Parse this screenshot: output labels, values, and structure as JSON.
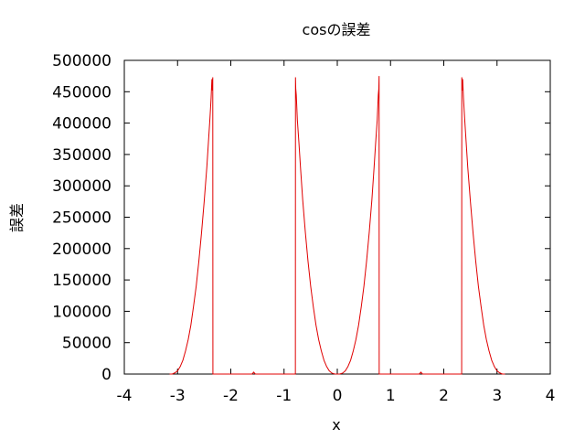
{
  "chart_data": {
    "type": "line",
    "title": "cosの誤差",
    "xlabel": "x",
    "ylabel": "誤差",
    "xlim": [
      -4,
      4
    ],
    "ylim": [
      0,
      500000
    ],
    "xticks": [
      "-4",
      "-3",
      "-2",
      "-1",
      "0",
      "1",
      "2",
      "3",
      "4"
    ],
    "yticks": [
      "0",
      "50000",
      "100000",
      "150000",
      "200000",
      "250000",
      "300000",
      "350000",
      "400000",
      "450000",
      "500000"
    ],
    "grid": false,
    "legend": "none",
    "series": [
      {
        "color": "#e00000",
        "points": [
          [
            -3.15,
            0
          ],
          [
            -3.1,
            0
          ],
          [
            -3.05,
            2000
          ],
          [
            -3.0,
            5000
          ],
          [
            -2.95,
            12000
          ],
          [
            -2.9,
            22000
          ],
          [
            -2.85,
            37000
          ],
          [
            -2.8,
            55000
          ],
          [
            -2.75,
            78000
          ],
          [
            -2.7,
            108000
          ],
          [
            -2.65,
            140000
          ],
          [
            -2.6,
            180000
          ],
          [
            -2.55,
            225000
          ],
          [
            -2.5,
            275000
          ],
          [
            -2.45,
            330000
          ],
          [
            -2.42,
            370000
          ],
          [
            -2.39,
            410000
          ],
          [
            -2.37,
            440000
          ],
          [
            -2.355,
            470000
          ],
          [
            -2.345,
            452000
          ],
          [
            -2.3385,
            473000
          ],
          [
            -2.336,
            0
          ],
          [
            -2.33,
            0
          ],
          [
            -1.6,
            0
          ],
          [
            -1.57,
            3000
          ],
          [
            -1.54,
            0
          ],
          [
            -0.787,
            0
          ],
          [
            -0.785,
            473000
          ],
          [
            -0.78,
            455000
          ],
          [
            -0.77,
            445000
          ],
          [
            -0.75,
            405000
          ],
          [
            -0.72,
            368000
          ],
          [
            -0.69,
            328000
          ],
          [
            -0.65,
            278000
          ],
          [
            -0.6,
            226000
          ],
          [
            -0.55,
            180000
          ],
          [
            -0.5,
            140000
          ],
          [
            -0.45,
            107000
          ],
          [
            -0.4,
            78000
          ],
          [
            -0.35,
            55000
          ],
          [
            -0.3,
            37000
          ],
          [
            -0.25,
            22000
          ],
          [
            -0.2,
            12000
          ],
          [
            -0.15,
            5000
          ],
          [
            -0.1,
            1500
          ],
          [
            -0.05,
            200
          ],
          [
            0.0,
            0
          ],
          [
            0.05,
            200
          ],
          [
            0.1,
            1500
          ],
          [
            0.15,
            5000
          ],
          [
            0.2,
            12000
          ],
          [
            0.25,
            22000
          ],
          [
            0.3,
            37000
          ],
          [
            0.35,
            55000
          ],
          [
            0.4,
            78000
          ],
          [
            0.45,
            107000
          ],
          [
            0.5,
            140000
          ],
          [
            0.55,
            180000
          ],
          [
            0.6,
            226000
          ],
          [
            0.65,
            278000
          ],
          [
            0.69,
            328000
          ],
          [
            0.72,
            368000
          ],
          [
            0.75,
            405000
          ],
          [
            0.77,
            445000
          ],
          [
            0.78,
            455000
          ],
          [
            0.785,
            475000
          ],
          [
            0.787,
            0
          ],
          [
            1.54,
            0
          ],
          [
            1.57,
            3000
          ],
          [
            1.6,
            0
          ],
          [
            2.336,
            0
          ],
          [
            2.3385,
            473000
          ],
          [
            2.345,
            452000
          ],
          [
            2.355,
            470000
          ],
          [
            2.37,
            440000
          ],
          [
            2.39,
            410000
          ],
          [
            2.42,
            370000
          ],
          [
            2.45,
            330000
          ],
          [
            2.5,
            275000
          ],
          [
            2.55,
            225000
          ],
          [
            2.6,
            180000
          ],
          [
            2.65,
            140000
          ],
          [
            2.7,
            108000
          ],
          [
            2.75,
            78000
          ],
          [
            2.8,
            55000
          ],
          [
            2.85,
            37000
          ],
          [
            2.9,
            22000
          ],
          [
            2.95,
            12000
          ],
          [
            3.0,
            5000
          ],
          [
            3.05,
            2000
          ],
          [
            3.1,
            0
          ],
          [
            3.15,
            0
          ]
        ]
      }
    ]
  }
}
